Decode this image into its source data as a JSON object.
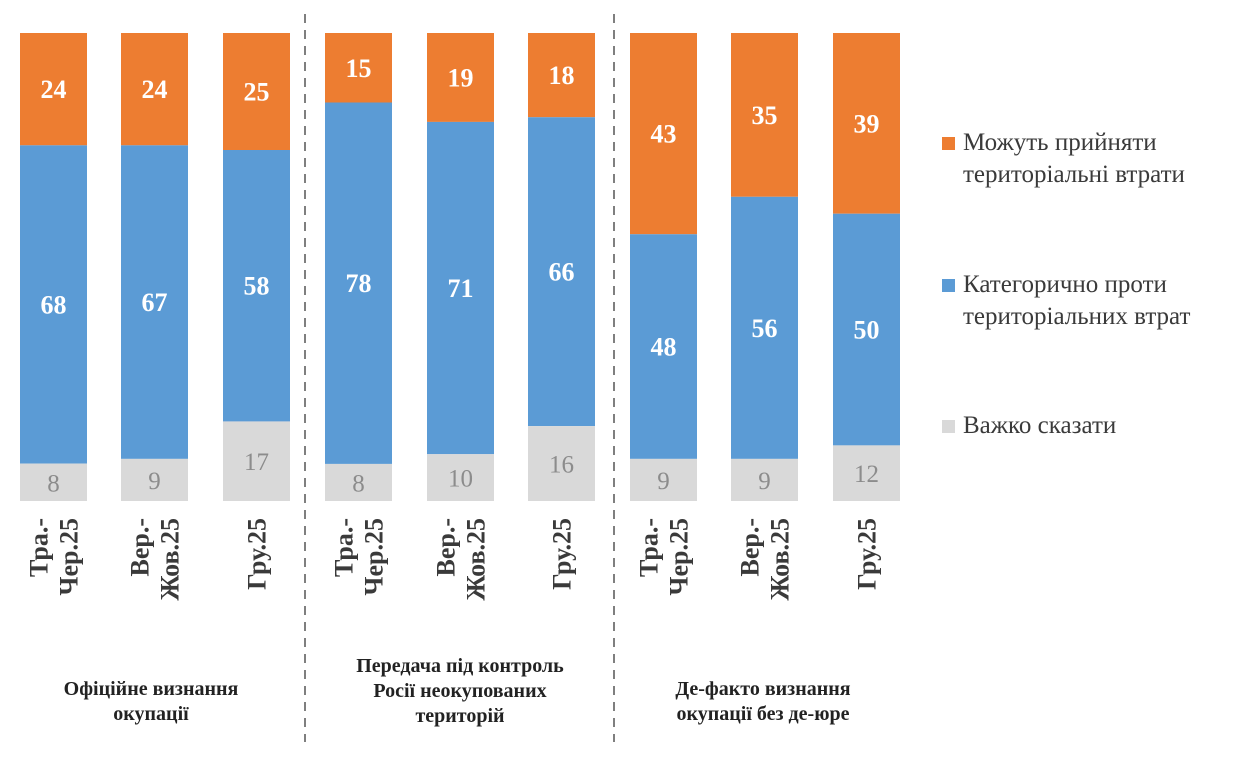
{
  "chart_data": {
    "type": "bar",
    "stacked": true,
    "normalized": true,
    "colors": {
      "accept": "#ed7d31",
      "against": "#5b9bd5",
      "hard": "#d9d9d9"
    },
    "legend_placement": "right",
    "groups": [
      {
        "label_lines": [
          "Офіційне визнання",
          "окупації"
        ],
        "categories": [
          {
            "label_lines": [
              "Тра.-",
              "Чер.25"
            ],
            "accept": 24,
            "against": 68,
            "hard": 8
          },
          {
            "label_lines": [
              "Вер.-",
              "Жов.25"
            ],
            "accept": 24,
            "against": 67,
            "hard": 9
          },
          {
            "label_lines": [
              "Гру.25"
            ],
            "accept": 25,
            "against": 58,
            "hard": 17
          }
        ]
      },
      {
        "label_lines": [
          "Передача під контроль",
          "Росії неокупованих",
          "територій"
        ],
        "categories": [
          {
            "label_lines": [
              "Тра.-",
              "Чер.25"
            ],
            "accept": 15,
            "against": 78,
            "hard": 8
          },
          {
            "label_lines": [
              "Вер.-",
              "Жов.25"
            ],
            "accept": 19,
            "against": 71,
            "hard": 10
          },
          {
            "label_lines": [
              "Гру.25"
            ],
            "accept": 18,
            "against": 66,
            "hard": 16
          }
        ]
      },
      {
        "label_lines": [
          "Де-факто визнання",
          "окупації без де-юре"
        ],
        "categories": [
          {
            "label_lines": [
              "Тра.-",
              "Чер.25"
            ],
            "accept": 43,
            "against": 48,
            "hard": 9
          },
          {
            "label_lines": [
              "Вер.-",
              "Жов.25"
            ],
            "accept": 35,
            "against": 56,
            "hard": 9
          },
          {
            "label_lines": [
              "Гру.25"
            ],
            "accept": 39,
            "against": 50,
            "hard": 12
          }
        ]
      }
    ],
    "series": [
      {
        "key": "accept",
        "name_lines": [
          "Можуть прийняти",
          "територіальні втрати"
        ]
      },
      {
        "key": "against",
        "name_lines": [
          "Категорично проти",
          "територіальних втрат"
        ]
      },
      {
        "key": "hard",
        "name_lines": [
          "Важко сказати"
        ]
      }
    ]
  }
}
